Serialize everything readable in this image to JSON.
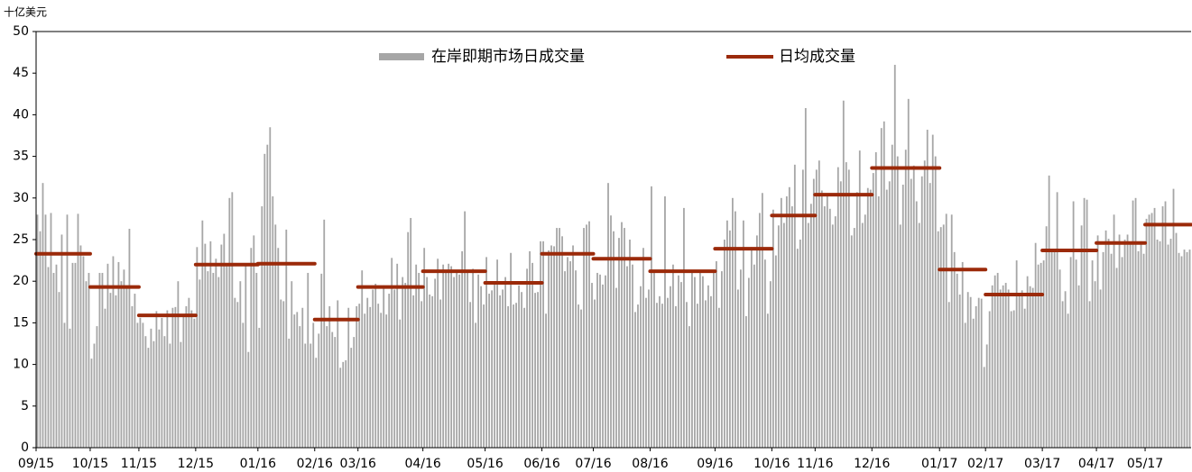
{
  "chart_data": {
    "type": "bar",
    "y_unit": "十亿美元",
    "series": [
      {
        "name": "在岸即期市场日成交量",
        "color": "#a6a6a6",
        "values": [
          28,
          26,
          31.8,
          28,
          21.7,
          28.2,
          21,
          22,
          18.7,
          25.6,
          15,
          28,
          14.3,
          22.2,
          22.2,
          28.1,
          24.3,
          23,
          20,
          21,
          10.7,
          12.5,
          14.6,
          21,
          21,
          16.7,
          22.1,
          18.6,
          23,
          18.3,
          22.3,
          20,
          21.4,
          19.5,
          26.3,
          17,
          18.5,
          15,
          15.6,
          15,
          13.4,
          12,
          14.3,
          12.8,
          16.4,
          14.2,
          15.6,
          13.4,
          16.5,
          12.5,
          16.8,
          16.9,
          20,
          12.7,
          16,
          17,
          18,
          16.5,
          15.5,
          24.1,
          20.2,
          27.3,
          24.5,
          21.2,
          24.8,
          21,
          22.7,
          20.5,
          24.4,
          25.7,
          22,
          30,
          30.7,
          18,
          17.5,
          20,
          15,
          22,
          11.5,
          24,
          25.5,
          21,
          14.4,
          29,
          35.3,
          36.4,
          38.5,
          30.2,
          26.8,
          24,
          17.8,
          17.6,
          26.2,
          13.1,
          20,
          16,
          16.3,
          14.6,
          16.8,
          12.5,
          21,
          12.5,
          15,
          10.8,
          13.7,
          20.9,
          27.4,
          14.6,
          17,
          13.9,
          13.3,
          17.7,
          9.6,
          10.3,
          10.5,
          16.8,
          12,
          13.3,
          17,
          17.3,
          21.3,
          16.1,
          18,
          16.9,
          19,
          19.7,
          17.3,
          16.2,
          19.5,
          16,
          18.5,
          22.8,
          19,
          22.1,
          15.4,
          20.5,
          19.8,
          25.9,
          27.6,
          18.3,
          22,
          21,
          17.6,
          24,
          20.5,
          18.4,
          18.2,
          20.3,
          22.7,
          17.8,
          22,
          21.2,
          22.1,
          21.8,
          20.5,
          21.1,
          20.8,
          23.6,
          28.4,
          21,
          17.5,
          21.5,
          15,
          20.8,
          19.4,
          17.2,
          22.9,
          18.5,
          18.9,
          20,
          22.6,
          18.3,
          19,
          20.5,
          17,
          23.4,
          17.2,
          17.4,
          19.5,
          18.7,
          16.8,
          21.5,
          23.6,
          22.2,
          18.6,
          18.7,
          24.8,
          24.8,
          16.1,
          23.7,
          24.3,
          24.2,
          26.4,
          26.4,
          25.4,
          21.2,
          22.9,
          22.4,
          24.3,
          21.3,
          17.2,
          16.6,
          26.4,
          26.8,
          27.2,
          19.8,
          17.8,
          21,
          20.8,
          19.6,
          20.7,
          31.8,
          27.9,
          26,
          19.2,
          25.2,
          27.1,
          26.4,
          21.8,
          25,
          22,
          16.3,
          17.2,
          19.4,
          24,
          18,
          19,
          31.4,
          21,
          17.4,
          18.2,
          17.3,
          30.2,
          18,
          19.4,
          22,
          17,
          20.7,
          19.9,
          28.8,
          17.5,
          14.6,
          21,
          20.5,
          17.3,
          21.3,
          20.6,
          17.7,
          19.5,
          18.2,
          21,
          22.4,
          16.8,
          21.2,
          25,
          27.3,
          26.1,
          30,
          28.4,
          19,
          21.4,
          27.3,
          15.8,
          20.4,
          24.1,
          22,
          25.5,
          28.2,
          30.6,
          22.6,
          16.1,
          20,
          28.6,
          23.1,
          26.7,
          30,
          27,
          30.2,
          31.3,
          29,
          34,
          23.9,
          25,
          33.4,
          40.8,
          27,
          29.3,
          32.3,
          33.4,
          34.5,
          30.9,
          29,
          30.2,
          28.7,
          26.8,
          27.8,
          33.7,
          32,
          41.7,
          34.3,
          33.4,
          25.5,
          26.4,
          30.7,
          35.7,
          27,
          28,
          31.2,
          31,
          33,
          35.5,
          30.2,
          38.4,
          39.2,
          31,
          32,
          36.4,
          46,
          35,
          26.8,
          31.6,
          35.8,
          41.9,
          32.3,
          33.9,
          29.6,
          27,
          32.6,
          34.5,
          38.2,
          31.8,
          37.6,
          35,
          26,
          26.5,
          26.8,
          28.1,
          17.5,
          28,
          23.5,
          20.9,
          18.4,
          22.3,
          15,
          18.7,
          18.1,
          15.5,
          17,
          18,
          17.9,
          9.7,
          12.4,
          16.4,
          19.5,
          20.7,
          21,
          19,
          19.5,
          19.8,
          19,
          16.4,
          16.5,
          22.5,
          18.2,
          18.9,
          16.7,
          20.6,
          19.4,
          19.2,
          24.6,
          22,
          22.2,
          22.5,
          26.6,
          32.7,
          23.5,
          23.9,
          30.7,
          21.4,
          17.6,
          18.8,
          16.1,
          22.9,
          29.6,
          22.6,
          19.5,
          26.7,
          30,
          29.8,
          17.6,
          22.5,
          20,
          25.5,
          19,
          23.5,
          26.1,
          25.1,
          23.3,
          28,
          21.6,
          25.6,
          22.9,
          25,
          25.6,
          24.6,
          29.7,
          30,
          23.6,
          24.8,
          23.3,
          27.5,
          28,
          28.2,
          28.8,
          25,
          24.8,
          29,
          29.6,
          24.4,
          25.1,
          31.1,
          25.8,
          23.4,
          23,
          23.8,
          23.5,
          23.8
        ]
      },
      {
        "name": "日均成交量",
        "type": "segment",
        "color": "#9b2a0a",
        "x_start": [
          0,
          20,
          38,
          59,
          82,
          103,
          119,
          143,
          166,
          187,
          206,
          227,
          251,
          272,
          288,
          309,
          334,
          351,
          372,
          392,
          410
        ],
        "x_end": [
          20,
          38,
          59,
          82,
          103,
          119,
          143,
          166,
          187,
          206,
          227,
          251,
          272,
          288,
          309,
          334,
          351,
          372,
          392,
          410,
          427
        ],
        "values": [
          23.3,
          19.3,
          15.9,
          22.0,
          22.1,
          15.4,
          19.3,
          21.2,
          19.8,
          23.3,
          22.7,
          21.2,
          23.9,
          27.9,
          30.4,
          33.6,
          21.4,
          18.4,
          23.7,
          24.6,
          26.8
        ]
      }
    ],
    "xlim": [
      0,
      427
    ],
    "xticks": [
      {
        "value": 0,
        "label": "09/15"
      },
      {
        "value": 20,
        "label": "10/15"
      },
      {
        "value": 38,
        "label": "11/15"
      },
      {
        "value": 59,
        "label": "12/15"
      },
      {
        "value": 82,
        "label": "01/16"
      },
      {
        "value": 103,
        "label": "02/16"
      },
      {
        "value": 119,
        "label": "03/16"
      },
      {
        "value": 143,
        "label": "04/16"
      },
      {
        "value": 166,
        "label": "05/16"
      },
      {
        "value": 187,
        "label": "06/16"
      },
      {
        "value": 206,
        "label": "07/16"
      },
      {
        "value": 227,
        "label": "08/16"
      },
      {
        "value": 251,
        "label": "09/16"
      },
      {
        "value": 272,
        "label": "10/16"
      },
      {
        "value": 288,
        "label": "11/16"
      },
      {
        "value": 309,
        "label": "12/16"
      },
      {
        "value": 334,
        "label": "01/17"
      },
      {
        "value": 351,
        "label": "02/17"
      },
      {
        "value": 372,
        "label": "03/17"
      },
      {
        "value": 392,
        "label": "04/17"
      },
      {
        "value": 410,
        "label": "05/17"
      }
    ],
    "ylim": [
      0,
      50
    ],
    "yticks": [
      0,
      5,
      10,
      15,
      20,
      25,
      30,
      35,
      40,
      45,
      50
    ]
  }
}
